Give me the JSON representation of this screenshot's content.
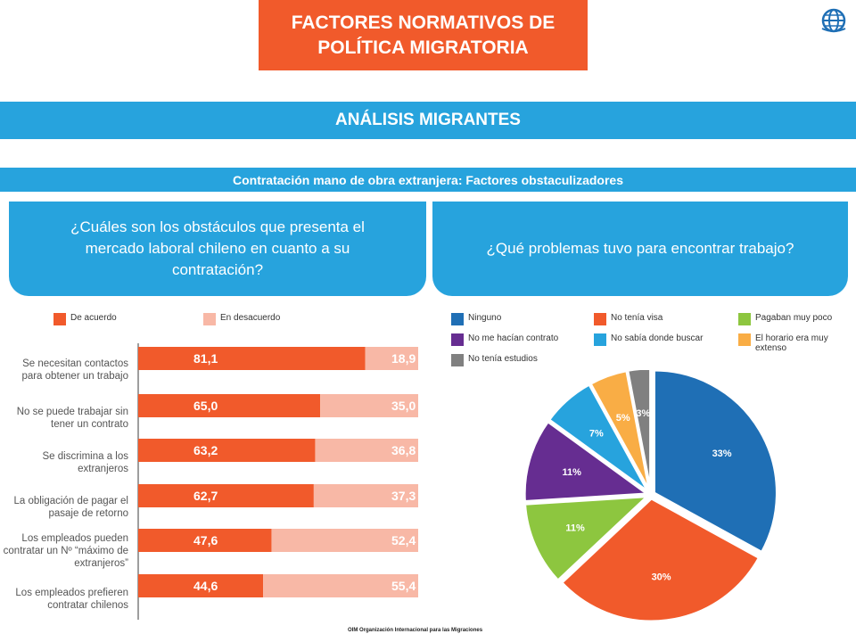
{
  "header": {
    "title_line1": "FACTORES NORMATIVOS DE",
    "title_line2": "POLÍTICA MIGRATORIA",
    "section": "ANÁLISIS MIGRANTES",
    "subsection": "Contratación mano de obra extranjera: Factores obstaculizadores"
  },
  "questions": {
    "left": "¿Cuáles son los obstáculos que presenta el mercado laboral chileno en cuanto a su contratación?",
    "right": "¿Qué problemas tuvo para encontrar trabajo?"
  },
  "footer": "OIM Organización Internacional para las Migraciones",
  "colors": {
    "orange": "#f15a2b",
    "pink": "#f8b8a6",
    "blue": "#27a3dd"
  },
  "chart_data": [
    {
      "type": "bar",
      "orientation": "horizontal-stacked",
      "categories": [
        "Se necesitan contactos para obtener un trabajo",
        "No se puede trabajar sin tener un contrato",
        "Se discrimina a los extranjeros",
        "La obligación de pagar el pasaje de retorno",
        "Los empleados pueden contratar un Nº “máximo de extranjeros”",
        "Los empleados prefieren contratar chilenos"
      ],
      "series": [
        {
          "name": "De acuerdo",
          "color": "#f15a2b",
          "values": [
            81.1,
            65.0,
            63.2,
            62.7,
            47.6,
            44.6
          ],
          "labels": [
            "81,1",
            "65,0",
            "63,2",
            "62,7",
            "47,6",
            "44,6"
          ]
        },
        {
          "name": "En desacuerdo",
          "color": "#f8b8a6",
          "values": [
            18.9,
            35.0,
            36.8,
            37.3,
            52.4,
            55.4
          ],
          "labels": [
            "18,9",
            "35,0",
            "36,8",
            "37,3",
            "52,4",
            "55,4"
          ]
        }
      ],
      "xlim": [
        0,
        100
      ]
    },
    {
      "type": "pie",
      "slices": [
        {
          "name": "Ninguno",
          "value": 33,
          "label": "33%",
          "color": "#1f6fb5"
        },
        {
          "name": "No tenía visa",
          "value": 30,
          "label": "30%",
          "color": "#f15a2b"
        },
        {
          "name": "Pagaban muy poco",
          "value": 11,
          "label": "11%",
          "color": "#8dc63f"
        },
        {
          "name": "No me hacían contrato",
          "value": 11,
          "label": "11%",
          "color": "#662d91"
        },
        {
          "name": "No sabía donde buscar",
          "value": 7,
          "label": "7%",
          "color": "#27a3dd"
        },
        {
          "name": "El horario era muy extenso",
          "value": 5,
          "label": "5%",
          "color": "#f9ad45"
        },
        {
          "name": "No tenía estudios",
          "value": 3,
          "label": "3%",
          "color": "#808080"
        }
      ]
    }
  ]
}
